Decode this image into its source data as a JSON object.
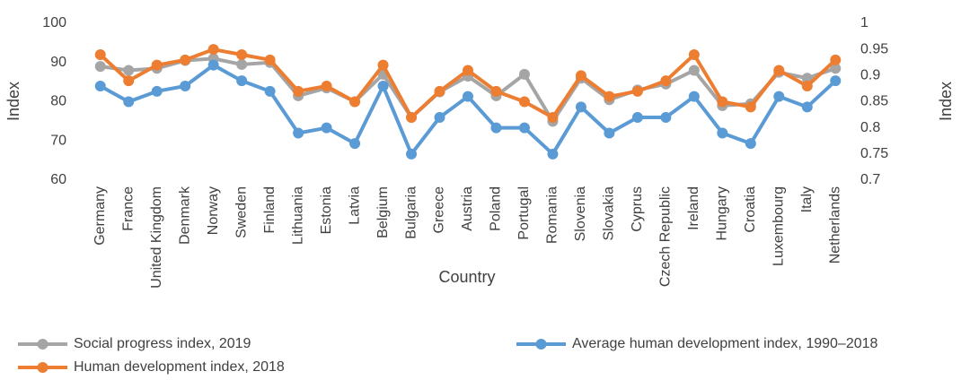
{
  "chart_data": {
    "type": "line",
    "x_label": "Country",
    "y_label": "Index",
    "y2_label": "Index",
    "categories": [
      "Germany",
      "France",
      "United Kingdom",
      "Denmark",
      "Norway",
      "Sweden",
      "Finland",
      "Lithuania",
      "Estonia",
      "Latvia",
      "Belgium",
      "Bulgaria",
      "Greece",
      "Austria",
      "Poland",
      "Portugal",
      "Romania",
      "Slovenia",
      "Slovakia",
      "Cyprus",
      "Czech Republic",
      "Ireland",
      "Hungary",
      "Croatia",
      "Luxembourg",
      "Italy",
      "Netherlands"
    ],
    "series": [
      {
        "name": "Social progress index, 2019",
        "color": "#a5a5a5",
        "axis": "y",
        "values": [
          89,
          88,
          88.5,
          90.5,
          91,
          89.5,
          90,
          81.5,
          83.5,
          80,
          87,
          76,
          82.5,
          86.5,
          81.5,
          87,
          75,
          86,
          80.5,
          83,
          84.5,
          88,
          79,
          79.5,
          87.5,
          86,
          88.5
        ]
      },
      {
        "name": "Average human development index, 1990–2018",
        "color": "#5b9bd5",
        "axis": "y2",
        "values": [
          0.88,
          0.85,
          0.87,
          0.88,
          0.92,
          0.89,
          0.87,
          0.79,
          0.8,
          0.77,
          0.88,
          0.75,
          0.82,
          0.86,
          0.8,
          0.8,
          0.75,
          0.84,
          0.79,
          0.82,
          0.82,
          0.86,
          0.79,
          0.77,
          0.86,
          0.84,
          0.89
        ]
      },
      {
        "name": "Human development index, 2018",
        "color": "#ed7d31",
        "axis": "y2",
        "values": [
          0.94,
          0.89,
          0.92,
          0.93,
          0.95,
          0.94,
          0.93,
          0.87,
          0.88,
          0.85,
          0.92,
          0.82,
          0.87,
          0.91,
          0.87,
          0.85,
          0.82,
          0.9,
          0.86,
          0.87,
          0.89,
          0.94,
          0.85,
          0.84,
          0.91,
          0.88,
          0.93
        ]
      }
    ],
    "ylim": [
      60,
      100
    ],
    "yticks": [
      60,
      70,
      80,
      90,
      100
    ],
    "y2lim": [
      0.7,
      1
    ],
    "y2ticks": [
      0.7,
      0.75,
      0.8,
      0.85,
      0.9,
      0.95,
      1
    ],
    "grid": false
  }
}
